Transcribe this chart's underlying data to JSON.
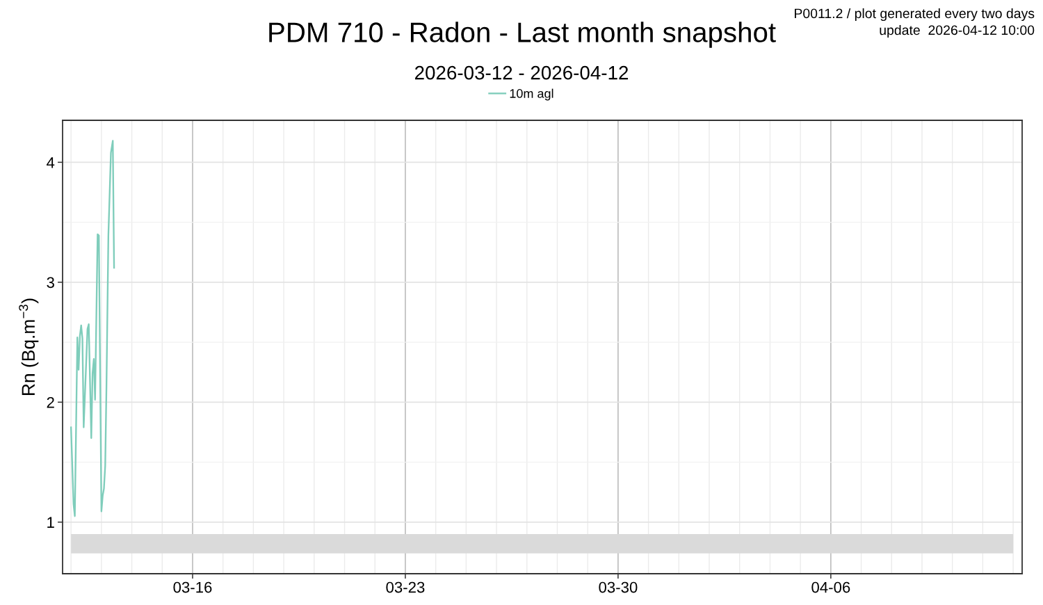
{
  "chart_data": {
    "type": "line",
    "title": "PDM 710 - Radon - Last month snapshot",
    "subtitle": "2026-03-12 - 2026-04-12",
    "ylabel": "Rn (Bq.m$^{−3}$)",
    "annotations": [
      "P0011.2 / plot generated every two days",
      "update  2026-04-12 10:00"
    ],
    "series": [
      {
        "name": "10m agl",
        "color": "#7fcdbb",
        "x": [
          "2026-03-12T00:00",
          "2026-03-12T02:00",
          "2026-03-12T03:00",
          "2026-03-12T05:00",
          "2026-03-12T06:00",
          "2026-03-12T07:00",
          "2026-03-12T08:00",
          "2026-03-12T09:00",
          "2026-03-12T10:00",
          "2026-03-12T13:00",
          "2026-03-12T14:00",
          "2026-03-12T16:00",
          "2026-03-12T17:00",
          "2026-03-12T18:00",
          "2026-03-12T19:00",
          "2026-03-12T21:00",
          "2026-03-12T22:00",
          "2026-03-13T00:00",
          "2026-03-13T01:00",
          "2026-03-13T02:00",
          "2026-03-13T03:00",
          "2026-03-13T04:00",
          "2026-03-13T05:30",
          "2026-03-13T07:30",
          "2026-03-13T09:00",
          "2026-03-13T10:00"
        ],
        "values": [
          1.79,
          1.15,
          1.05,
          2.54,
          2.27,
          2.55,
          2.64,
          2.53,
          1.79,
          2.61,
          2.65,
          1.7,
          2.24,
          2.36,
          2.02,
          3.4,
          3.39,
          1.09,
          1.22,
          1.28,
          1.47,
          2.14,
          3.39,
          4.08,
          4.18,
          3.12
        ]
      }
    ],
    "bands": [
      {
        "axis": "y",
        "from": 0.74,
        "to": 0.9,
        "color": "#dadada"
      }
    ],
    "xlim": [
      "2026-03-11T17:20",
      "2026-04-12T07:05"
    ],
    "xticks": [
      {
        "value": "2026-03-12",
        "label": null
      },
      {
        "value": "2026-03-13",
        "label": null
      },
      {
        "value": "2026-03-14",
        "label": null
      },
      {
        "value": "2026-03-15",
        "label": null
      },
      {
        "value": "2026-03-16",
        "label": "03-16"
      },
      {
        "value": "2026-03-17",
        "label": null
      },
      {
        "value": "2026-03-18",
        "label": null
      },
      {
        "value": "2026-03-19",
        "label": null
      },
      {
        "value": "2026-03-20",
        "label": null
      },
      {
        "value": "2026-03-21",
        "label": null
      },
      {
        "value": "2026-03-22",
        "label": null
      },
      {
        "value": "2026-03-23",
        "label": "03-23"
      },
      {
        "value": "2026-03-24",
        "label": null
      },
      {
        "value": "2026-03-25",
        "label": null
      },
      {
        "value": "2026-03-26",
        "label": null
      },
      {
        "value": "2026-03-27",
        "label": null
      },
      {
        "value": "2026-03-28",
        "label": null
      },
      {
        "value": "2026-03-29",
        "label": null
      },
      {
        "value": "2026-03-30",
        "label": "03-30"
      },
      {
        "value": "2026-03-31",
        "label": null
      },
      {
        "value": "2026-04-01",
        "label": null
      },
      {
        "value": "2026-04-02",
        "label": null
      },
      {
        "value": "2026-04-03",
        "label": null
      },
      {
        "value": "2026-04-04",
        "label": null
      },
      {
        "value": "2026-04-05",
        "label": null
      },
      {
        "value": "2026-04-06",
        "label": "04-06"
      },
      {
        "value": "2026-04-07",
        "label": null
      },
      {
        "value": "2026-04-08",
        "label": null
      },
      {
        "value": "2026-04-09",
        "label": null
      },
      {
        "value": "2026-04-10",
        "label": null
      },
      {
        "value": "2026-04-11",
        "label": null
      },
      {
        "value": "2026-04-12",
        "label": null
      }
    ],
    "ylim": [
      0.57,
      4.35
    ],
    "yticks": [
      1,
      {
        "value": 1.5,
        "label": null
      },
      2,
      {
        "value": 2.5,
        "label": null
      },
      3,
      {
        "value": 3.5,
        "label": null
      },
      4
    ],
    "grid": true,
    "legend": "top"
  }
}
